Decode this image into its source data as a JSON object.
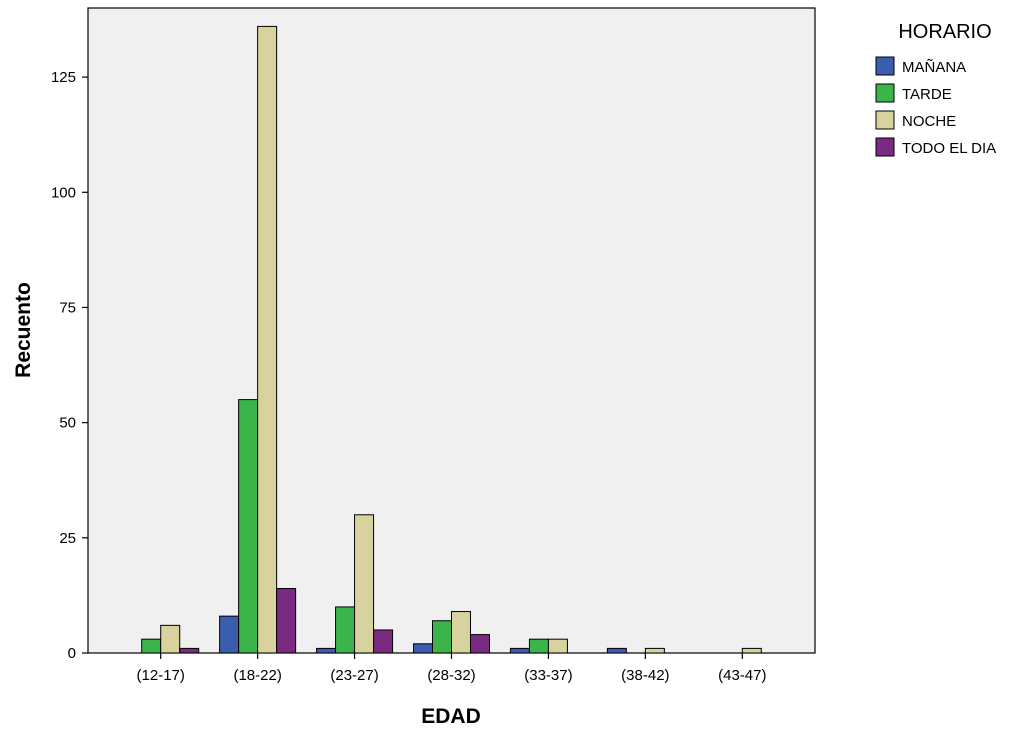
{
  "chart_data": {
    "type": "bar",
    "title": "",
    "xlabel": "EDAD",
    "ylabel": "Recuento",
    "ylim": [
      0,
      140
    ],
    "yticks": [
      0,
      25,
      50,
      75,
      100,
      125
    ],
    "categories": [
      "(12-17)",
      "(18-22)",
      "(23-27)",
      "(28-32)",
      "(33-37)",
      "(38-42)",
      "(43-47)"
    ],
    "legend_title": "HORARIO",
    "legend_position": "top-right",
    "grid": false,
    "plot_background": "#f0f0f0",
    "series": [
      {
        "name": "MAÑANA",
        "color": "#3a5dae",
        "values": [
          0,
          8,
          1,
          2,
          1,
          1,
          0
        ]
      },
      {
        "name": "TARDE",
        "color": "#3bb54a",
        "values": [
          3,
          55,
          10,
          7,
          3,
          0,
          0
        ]
      },
      {
        "name": "NOCHE",
        "color": "#d7d29e",
        "values": [
          6,
          136,
          30,
          9,
          3,
          1,
          1
        ]
      },
      {
        "name": "TODO EL DIA",
        "color": "#7b2a82",
        "values": [
          1,
          14,
          5,
          4,
          0,
          0,
          0
        ]
      }
    ]
  }
}
